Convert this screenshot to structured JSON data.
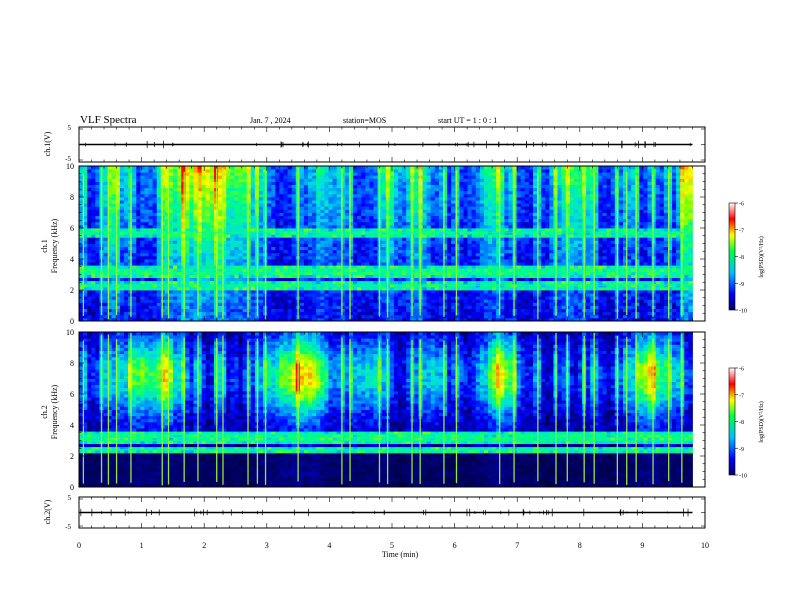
{
  "header": {
    "title": "VLF Spectra",
    "date": "Jan. 7 , 2024",
    "station": "station=MOS",
    "start": "start UT =  1 : 0  : 1"
  },
  "colorbar": {
    "label": "log(PSD)(V²/Hz)",
    "ticks": [
      "-6",
      "-7",
      "-8",
      "-9",
      "-10"
    ]
  },
  "chart_data": [
    {
      "type": "line",
      "name": "ch.1 waveform",
      "ylabel": "ch.1(V)",
      "ylim": [
        -5,
        5
      ],
      "y_ticks": [
        "5",
        "-5"
      ],
      "baseline": 0
    },
    {
      "type": "heatmap",
      "ylabel_line1": "ch.1",
      "ylabel_line2": "Frequency (kHz)",
      "ylim": [
        0,
        10
      ],
      "y_ticks": [
        "0",
        "2",
        "4",
        "6",
        "8",
        "10"
      ],
      "color_range": [
        -10,
        -6
      ],
      "strong_bands_khz": [
        2.3,
        3.1,
        3.3,
        5.7
      ],
      "burst_times_min": [
        0.07,
        0.36,
        0.47,
        0.6,
        0.83,
        1.33,
        1.43,
        1.68,
        1.9,
        2.2,
        2.3,
        2.7,
        2.85,
        2.98,
        3.5,
        4.2,
        4.33,
        4.8,
        4.93,
        5.32,
        5.45,
        5.83,
        6.03,
        6.72,
        6.95,
        7.33,
        7.62,
        7.8,
        8.07,
        8.23,
        8.6,
        8.75,
        8.9,
        9.17,
        9.42,
        9.63
      ]
    },
    {
      "type": "heatmap",
      "ylabel_line1": "ch.2",
      "ylabel_line2": "Frequency (kHz)",
      "ylim": [
        0,
        10
      ],
      "y_ticks": [
        "0",
        "2",
        "4",
        "6",
        "8",
        "10"
      ],
      "color_range": [
        -10,
        -6
      ],
      "strong_bands_khz": [
        2.4,
        3.0,
        3.2,
        3.4
      ],
      "burst_times_min": [
        0.07,
        0.36,
        0.47,
        0.6,
        0.83,
        1.33,
        1.43,
        1.68,
        1.9,
        2.2,
        2.3,
        2.7,
        2.85,
        2.98,
        3.5,
        4.2,
        4.33,
        4.8,
        4.93,
        5.32,
        5.45,
        5.83,
        6.03,
        6.72,
        6.95,
        7.33,
        7.62,
        7.8,
        8.07,
        8.23,
        8.6,
        8.75,
        8.9,
        9.17,
        9.42,
        9.63
      ]
    },
    {
      "type": "line",
      "name": "ch.2 waveform",
      "ylabel": "ch.2(V)",
      "ylim": [
        -5,
        5
      ],
      "y_ticks": [
        "5",
        "-5"
      ],
      "baseline": 0
    }
  ],
  "xaxis": {
    "label": "Time (min)",
    "xlim": [
      0,
      10
    ],
    "ticks": [
      "0",
      "1",
      "2",
      "3",
      "4",
      "5",
      "6",
      "7",
      "8",
      "9",
      "10"
    ],
    "data_end": 9.8
  }
}
